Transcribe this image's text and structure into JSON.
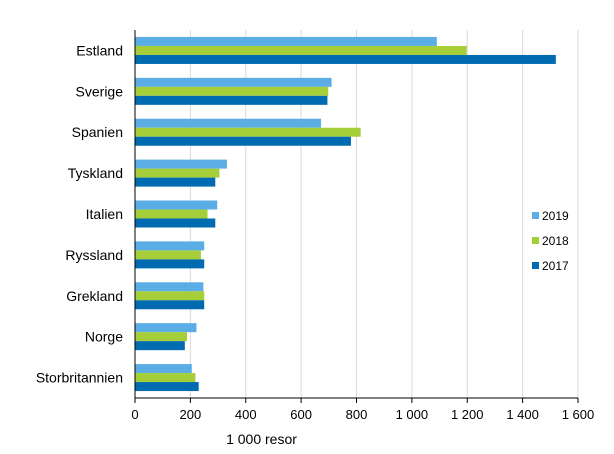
{
  "chart_data": {
    "type": "bar",
    "orientation": "horizontal",
    "title": "",
    "xlabel": "1 000 resor",
    "ylabel": "",
    "categories": [
      "Estland",
      "Sverige",
      "Spanien",
      "Tyskland",
      "Italien",
      "Ryssland",
      "Grekland",
      "Norge",
      "Storbritannien"
    ],
    "series": [
      {
        "name": "2019",
        "color": "#5aaee5",
        "values": [
          1090,
          710,
          672,
          332,
          297,
          250,
          247,
          222,
          205
        ]
      },
      {
        "name": "2018",
        "color": "#a6ce39",
        "values": [
          1198,
          698,
          815,
          305,
          262,
          238,
          250,
          188,
          218
        ]
      },
      {
        "name": "2017",
        "color": "#006bb0",
        "values": [
          1520,
          695,
          780,
          290,
          290,
          250,
          250,
          180,
          230
        ]
      }
    ],
    "xlim": [
      0,
      1600
    ],
    "xticks": [
      0,
      200,
      400,
      600,
      800,
      1000,
      1200,
      1400,
      1600
    ],
    "xtick_labels": [
      "0",
      "200",
      "400",
      "600",
      "800",
      "1 000",
      "1 200",
      "1 400",
      "1 600"
    ],
    "grid": "vertical",
    "legend_position": "right",
    "legend_order": [
      "2019",
      "2018",
      "2017"
    ]
  }
}
